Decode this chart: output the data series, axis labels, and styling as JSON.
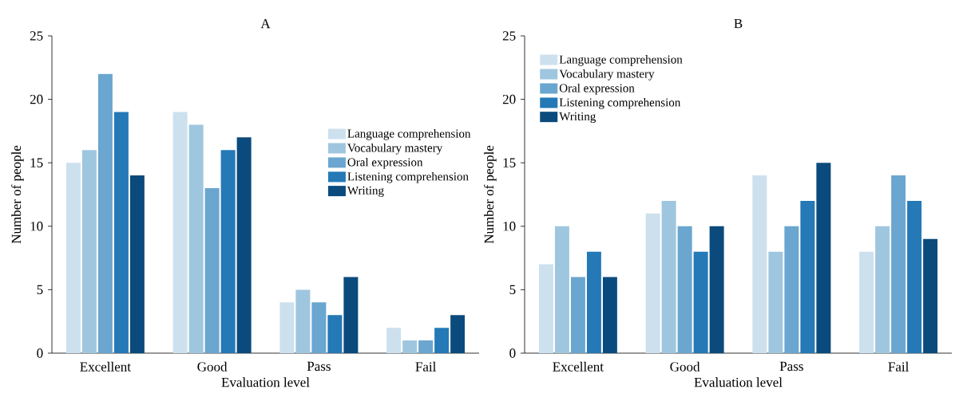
{
  "chart_data": [
    {
      "type": "bar",
      "title": "A",
      "xlabel": "Evaluation level",
      "ylabel": "Number of people",
      "categories": [
        "Excellent",
        "Good",
        "Pass",
        "Fail"
      ],
      "ylim": [
        0,
        25
      ],
      "yticks": [
        0,
        5,
        10,
        15,
        20,
        25
      ],
      "legend": "right",
      "series": [
        {
          "name": "Language comprehension",
          "color": "#cde0ee",
          "values": [
            15,
            19,
            4,
            2
          ]
        },
        {
          "name": "Vocabulary mastery",
          "color": "#9fc6df",
          "values": [
            16,
            18,
            5,
            1
          ]
        },
        {
          "name": "Oral expression",
          "color": "#6aa6cf",
          "values": [
            22,
            13,
            4,
            1
          ]
        },
        {
          "name": "Listening comprehension",
          "color": "#2479b6",
          "values": [
            19,
            16,
            3,
            2
          ]
        },
        {
          "name": "Writing",
          "color": "#0b4a7c",
          "values": [
            14,
            17,
            6,
            3
          ]
        }
      ]
    },
    {
      "type": "bar",
      "title": "B",
      "xlabel": "Evaluation level",
      "ylabel": "Number of people",
      "categories": [
        "Excellent",
        "Good",
        "Pass",
        "Fail"
      ],
      "ylim": [
        0,
        25
      ],
      "yticks": [
        0,
        5,
        10,
        15,
        20,
        25
      ],
      "legend": "top left",
      "series": [
        {
          "name": "Language comprehension",
          "color": "#cde0ee",
          "values": [
            7,
            11,
            14,
            8
          ]
        },
        {
          "name": "Vocabulary mastery",
          "color": "#9fc6df",
          "values": [
            10,
            12,
            8,
            10
          ]
        },
        {
          "name": "Oral expression",
          "color": "#6aa6cf",
          "values": [
            6,
            10,
            10,
            14
          ]
        },
        {
          "name": "Listening comprehension",
          "color": "#2479b6",
          "values": [
            8,
            8,
            12,
            12
          ]
        },
        {
          "name": "Writing",
          "color": "#0b4a7c",
          "values": [
            6,
            10,
            15,
            9
          ]
        }
      ]
    }
  ]
}
